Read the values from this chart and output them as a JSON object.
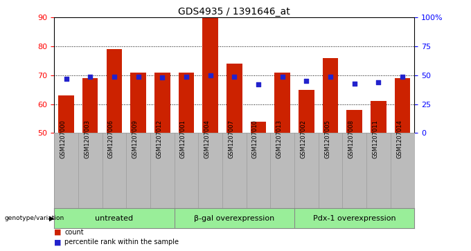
{
  "title": "GDS4935 / 1391646_at",
  "samples": [
    "GSM1207000",
    "GSM1207003",
    "GSM1207006",
    "GSM1207009",
    "GSM1207012",
    "GSM1207001",
    "GSM1207004",
    "GSM1207007",
    "GSM1207010",
    "GSM1207013",
    "GSM1207002",
    "GSM1207005",
    "GSM1207008",
    "GSM1207011",
    "GSM1207014"
  ],
  "counts": [
    63,
    69,
    79,
    71,
    71,
    71,
    90,
    74,
    54,
    71,
    65,
    76,
    58,
    61,
    69
  ],
  "percentiles": [
    47,
    49,
    49,
    49,
    48,
    49,
    50,
    49,
    42,
    49,
    45,
    49,
    43,
    44,
    49
  ],
  "ylim_left": [
    50,
    90
  ],
  "ylim_right": [
    0,
    100
  ],
  "yticks_left": [
    50,
    60,
    70,
    80,
    90
  ],
  "yticks_right": [
    0,
    25,
    50,
    75,
    100
  ],
  "bar_color": "#cc2200",
  "dot_color": "#2222cc",
  "bar_bottom": 50,
  "groups": [
    {
      "label": "untreated",
      "start": 0,
      "end": 5
    },
    {
      "label": "β-gal overexpression",
      "start": 5,
      "end": 10
    },
    {
      "label": "Pdx-1 overexpression",
      "start": 10,
      "end": 15
    }
  ],
  "group_bg_color": "#99ee99",
  "sample_bg_color": "#bbbbbb",
  "legend_count_color": "#cc2200",
  "legend_dot_color": "#2222cc",
  "title_fontsize": 10,
  "tick_fontsize": 8,
  "group_label_fontsize": 8,
  "sample_label_fontsize": 6,
  "bg_color": "#ffffff"
}
